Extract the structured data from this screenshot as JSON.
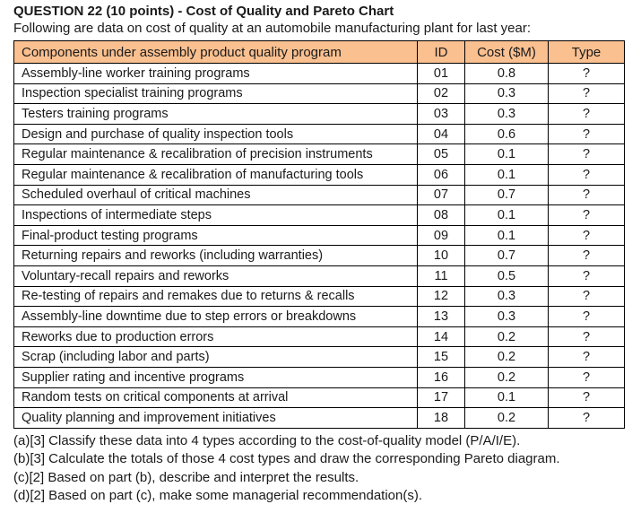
{
  "header": {
    "title": "QUESTION 22 (10 points) - Cost of Quality and Pareto Chart",
    "subtitle": "Following are data on cost of quality at an automobile manufacturing plant for last year:"
  },
  "table": {
    "columns": [
      "Components under assembly product quality program",
      "ID",
      "Cost ($M)",
      "Type"
    ],
    "rows": [
      {
        "component": "Assembly-line worker training programs",
        "id": "01",
        "cost": "0.8",
        "type": "?"
      },
      {
        "component": "Inspection specialist training programs",
        "id": "02",
        "cost": "0.3",
        "type": "?"
      },
      {
        "component": "Testers training programs",
        "id": "03",
        "cost": "0.3",
        "type": "?"
      },
      {
        "component": "Design and purchase of quality inspection tools",
        "id": "04",
        "cost": "0.6",
        "type": "?"
      },
      {
        "component": "Regular maintenance & recalibration of precision instruments",
        "id": "05",
        "cost": "0.1",
        "type": "?"
      },
      {
        "component": "Regular maintenance & recalibration of manufacturing tools",
        "id": "06",
        "cost": "0.1",
        "type": "?"
      },
      {
        "component": "Scheduled overhaul of critical machines",
        "id": "07",
        "cost": "0.7",
        "type": "?"
      },
      {
        "component": "Inspections of intermediate steps",
        "id": "08",
        "cost": "0.1",
        "type": "?"
      },
      {
        "component": "Final-product testing programs",
        "id": "09",
        "cost": "0.1",
        "type": "?"
      },
      {
        "component": "Returning repairs and reworks (including warranties)",
        "id": "10",
        "cost": "0.7",
        "type": "?"
      },
      {
        "component": "Voluntary-recall repairs and reworks",
        "id": "11",
        "cost": "0.5",
        "type": "?"
      },
      {
        "component": "Re-testing of repairs and remakes due to returns & recalls",
        "id": "12",
        "cost": "0.3",
        "type": "?"
      },
      {
        "component": "Assembly-line downtime due to step errors or breakdowns",
        "id": "13",
        "cost": "0.3",
        "type": "?"
      },
      {
        "component": "Reworks due to production errors",
        "id": "14",
        "cost": "0.2",
        "type": "?"
      },
      {
        "component": "Scrap (including labor and parts)",
        "id": "15",
        "cost": "0.2",
        "type": "?"
      },
      {
        "component": "Supplier rating and incentive programs",
        "id": "16",
        "cost": "0.2",
        "type": "?"
      },
      {
        "component": "Random tests on critical components at arrival",
        "id": "17",
        "cost": "0.1",
        "type": "?"
      },
      {
        "component": "Quality planning and improvement initiatives",
        "id": "18",
        "cost": "0.2",
        "type": "?"
      }
    ]
  },
  "questions": [
    "(a)[3] Classify these data into 4 types according to the cost-of-quality model (P/A/I/E).",
    "(b)[3] Calculate the totals of those 4 cost types and draw the corresponding Pareto diagram.",
    "(c)[2] Based on part (b), describe and interpret the results.",
    "(d)[2] Based on part (c), make some managerial recommendation(s)."
  ],
  "colors": {
    "table_header_bg": "#FAC090",
    "text": "#1A1A1A",
    "border": "#000000"
  }
}
